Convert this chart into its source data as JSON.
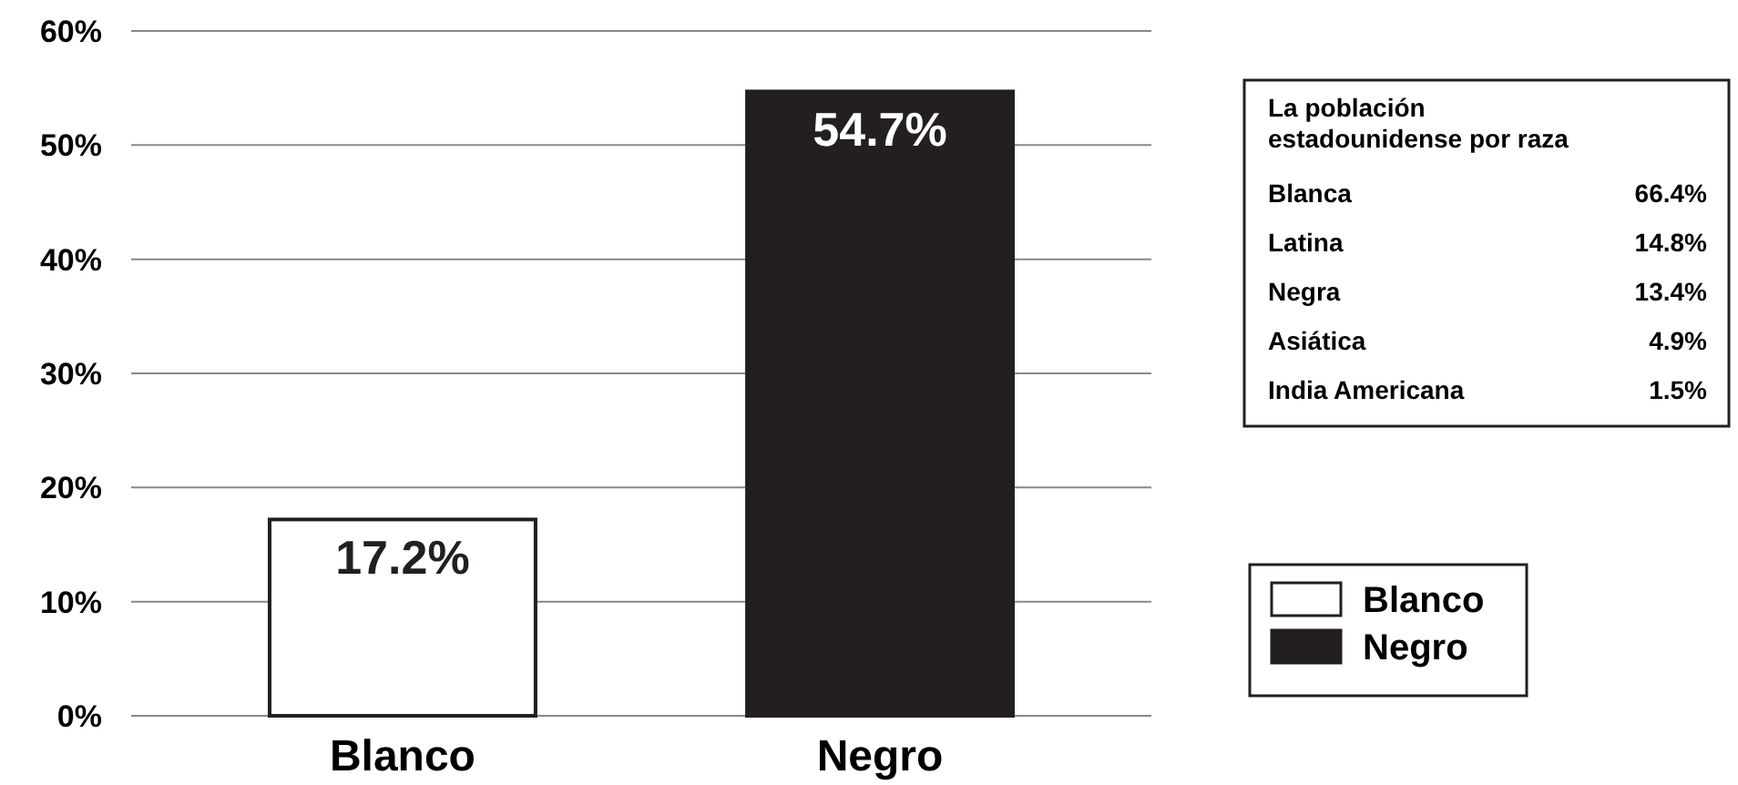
{
  "chart_data": [
    {
      "type": "bar",
      "categories": [
        "Blanco",
        "Negro"
      ],
      "series": [
        {
          "name": "Blanco",
          "color": "#ffffff",
          "values": [
            17.2,
            null
          ],
          "value_labels": [
            "17.2%",
            null
          ]
        },
        {
          "name": "Negro",
          "color": "#231f20",
          "values": [
            null,
            54.7
          ],
          "value_labels": [
            null,
            "54.7%"
          ]
        }
      ],
      "ylim": [
        0,
        60
      ],
      "yticks": [
        {
          "value": 0,
          "label": "0%"
        },
        {
          "value": 10,
          "label": "10%"
        },
        {
          "value": 20,
          "label": "20%"
        },
        {
          "value": 30,
          "label": "30%"
        },
        {
          "value": 40,
          "label": "40%"
        },
        {
          "value": 50,
          "label": "50%"
        },
        {
          "value": 60,
          "label": "60%"
        }
      ],
      "grid": "y",
      "legend": "right"
    },
    {
      "type": "other",
      "title": "La población estadounidense por raza",
      "categories": [
        "Blanca",
        "Latina",
        "Negra",
        "Asiática",
        "India Americana"
      ],
      "value_labels": [
        "66.4%",
        "14.8%",
        "13.4%",
        "4.9%",
        "1.5%"
      ]
    }
  ]
}
